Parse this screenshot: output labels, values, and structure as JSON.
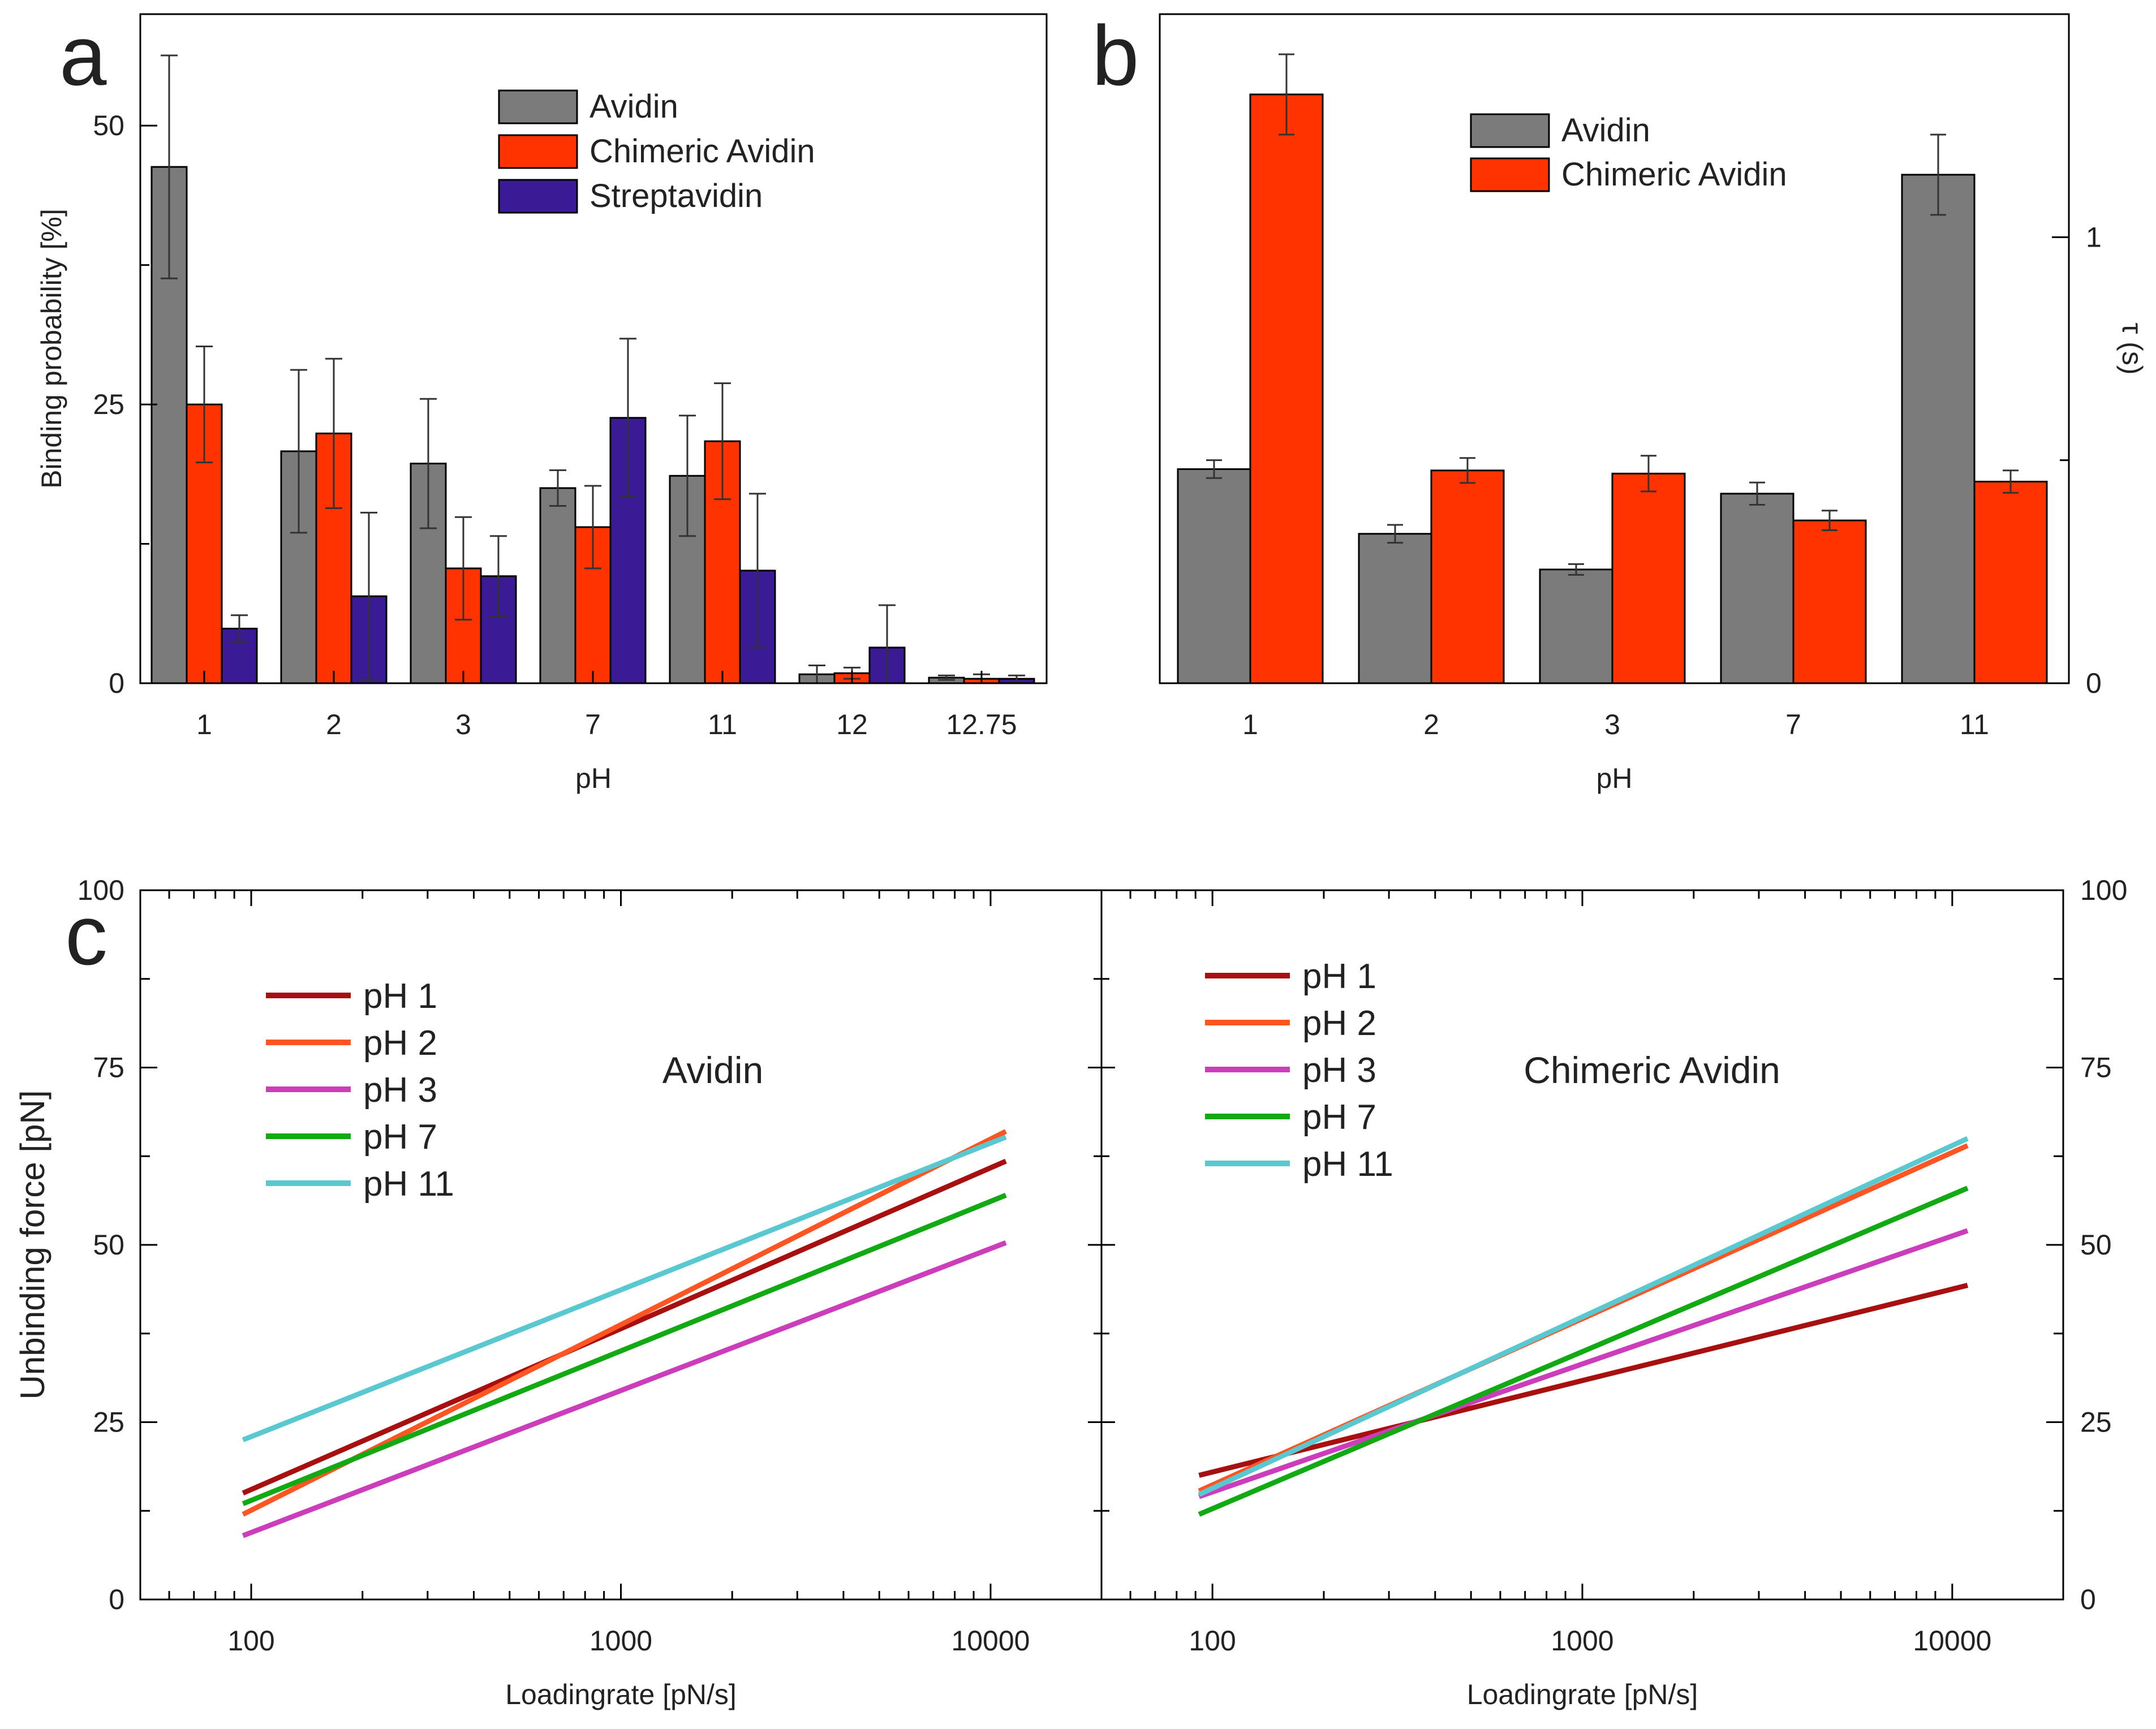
{
  "colors": {
    "avidin": "#7b7b7b",
    "chimeric": "#ff3300",
    "streptavidin": "#3a1a95",
    "line_ph1": "#a80f0f",
    "line_ph2": "#ff5522",
    "line_ph3": "#cc3dbb",
    "line_ph7": "#12aa12",
    "line_ph11": "#5ac8d0"
  },
  "chart_data": [
    {
      "id": "a",
      "panel_letter": "a",
      "type": "bar",
      "xlabel": "pH",
      "ylabel": "Binding probability [%]",
      "ylim": [
        0,
        60
      ],
      "yticks": [
        "0",
        "25",
        "50"
      ],
      "categories": [
        "1",
        "2",
        "3",
        "7",
        "11",
        "12",
        "12.75"
      ],
      "series": [
        {
          "name": "Avidin",
          "values": [
            46.3,
            20.8,
            19.7,
            17.5,
            18.6,
            0.8,
            0.5
          ],
          "errors": [
            10.0,
            7.3,
            5.8,
            1.6,
            5.4,
            0.8,
            0.2
          ]
        },
        {
          "name": "Chimeric Avidin",
          "values": [
            25.0,
            22.4,
            10.3,
            14.0,
            21.7,
            0.9,
            0.4
          ],
          "errors": [
            5.2,
            6.7,
            4.6,
            3.7,
            5.2,
            0.5,
            0.4
          ]
        },
        {
          "name": "Streptavidin",
          "values": [
            4.9,
            7.8,
            9.6,
            23.8,
            10.1,
            3.2,
            0.4
          ],
          "errors": [
            1.2,
            7.5,
            3.6,
            7.1,
            6.9,
            3.8,
            0.3
          ]
        }
      ]
    },
    {
      "id": "b",
      "panel_letter": "b",
      "type": "bar",
      "xlabel": "pH",
      "ylabel": "τ (s)",
      "ylim": [
        0,
        1.5
      ],
      "yticks": [
        "0",
        "1"
      ],
      "categories": [
        "1",
        "2",
        "3",
        "7",
        "11"
      ],
      "series": [
        {
          "name": "Avidin",
          "values": [
            0.48,
            0.335,
            0.255,
            0.425,
            1.14
          ],
          "errors": [
            0.02,
            0.02,
            0.012,
            0.025,
            0.09
          ]
        },
        {
          "name": "Chimeric Avidin",
          "values": [
            1.32,
            0.477,
            0.47,
            0.365,
            0.452
          ],
          "errors": [
            0.09,
            0.028,
            0.04,
            0.022,
            0.025
          ]
        }
      ]
    },
    {
      "id": "c",
      "panel_letter": "c",
      "type": "line",
      "xlabel": "Loadingrate [pN/s]",
      "ylabel": "Unbinding force [pN]",
      "ylim": [
        0,
        100
      ],
      "xlim_log10": [
        1.7,
        4.3
      ],
      "yticks": [
        "0",
        "25",
        "50",
        "75",
        "100"
      ],
      "xticks": [
        "100",
        "1000",
        "10000"
      ],
      "panels": [
        {
          "title": "Avidin",
          "series": [
            {
              "name": "pH 1",
              "x": [
                95,
                11000
              ],
              "y": [
                15.0,
                61.8
              ]
            },
            {
              "name": "pH 2",
              "x": [
                95,
                11000
              ],
              "y": [
                12.0,
                66.0
              ]
            },
            {
              "name": "pH 3",
              "x": [
                95,
                11000
              ],
              "y": [
                9.0,
                50.3
              ]
            },
            {
              "name": "pH 7",
              "x": [
                95,
                11000
              ],
              "y": [
                13.5,
                57.0
              ]
            },
            {
              "name": "pH 11",
              "x": [
                95,
                11000
              ],
              "y": [
                22.5,
                65.2
              ]
            }
          ]
        },
        {
          "title": "Chimeric Avidin",
          "series": [
            {
              "name": "pH 1",
              "x": [
                92,
                11000
              ],
              "y": [
                17.5,
                44.3
              ]
            },
            {
              "name": "pH 2",
              "x": [
                92,
                11000
              ],
              "y": [
                15.3,
                64.0
              ]
            },
            {
              "name": "pH 3",
              "x": [
                92,
                11000
              ],
              "y": [
                14.5,
                52.0
              ]
            },
            {
              "name": "pH 7",
              "x": [
                92,
                11000
              ],
              "y": [
                12.0,
                58.0
              ]
            },
            {
              "name": "pH 11",
              "x": [
                92,
                11000
              ],
              "y": [
                14.8,
                65.0
              ]
            }
          ]
        }
      ]
    }
  ]
}
